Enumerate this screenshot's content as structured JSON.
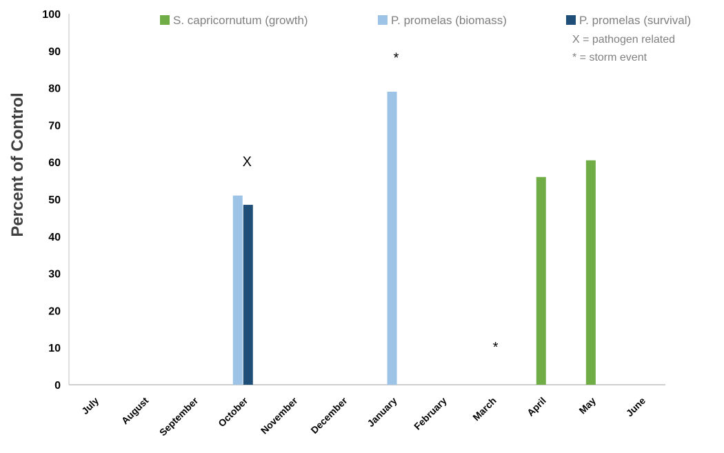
{
  "chart_data": {
    "type": "bar",
    "ylabel": "Percent of Control",
    "ylim": [
      0,
      100
    ],
    "yticks": [
      0,
      10,
      20,
      30,
      40,
      50,
      60,
      70,
      80,
      90,
      100
    ],
    "categories": [
      "July",
      "August",
      "September",
      "October",
      "November",
      "December",
      "January",
      "February",
      "March",
      "April",
      "May",
      "June"
    ],
    "series": [
      {
        "name": "S. capricornutum (growth)",
        "color": "#70ad47",
        "values": [
          null,
          null,
          null,
          null,
          null,
          null,
          null,
          null,
          null,
          56,
          60.5,
          null
        ]
      },
      {
        "name": "P. promelas (biomass)",
        "color": "#9dc3e6",
        "values": [
          null,
          null,
          null,
          51,
          null,
          null,
          79,
          null,
          null,
          null,
          null,
          null
        ]
      },
      {
        "name": "P. promelas (survival)",
        "color": "#1f4e79",
        "values": [
          null,
          null,
          null,
          48.5,
          null,
          null,
          null,
          null,
          null,
          null,
          null,
          null
        ]
      }
    ],
    "legend_position": "top-right",
    "legend_notes": [
      "X = pathogen related",
      "* = storm event"
    ],
    "annotations": [
      {
        "text": "X",
        "category": "October",
        "y": 60
      },
      {
        "text": "*",
        "category": "January",
        "y": 88
      },
      {
        "text": "*",
        "category": "March",
        "y": 10
      }
    ],
    "grid": false
  }
}
